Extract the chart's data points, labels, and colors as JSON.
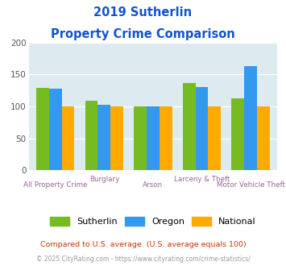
{
  "title_line1": "2019 Sutherlin",
  "title_line2": "Property Crime Comparison",
  "categories": [
    "All Property Crime",
    "Burglary",
    "Arson",
    "Larceny & Theft",
    "Motor Vehicle Theft"
  ],
  "x_labels_upper": [
    "",
    "Burglary",
    "",
    "Larceny & Theft",
    ""
  ],
  "x_labels_lower": [
    "All Property Crime",
    "",
    "Arson",
    "",
    "Motor Vehicle Theft"
  ],
  "sutherlin": [
    129,
    109,
    100,
    137,
    112
  ],
  "oregon": [
    128,
    103,
    100,
    130,
    163
  ],
  "national": [
    100,
    100,
    100,
    100,
    100
  ],
  "sutherlin_color": "#77bb22",
  "oregon_color": "#3399ee",
  "national_color": "#ffaa00",
  "ylim": [
    0,
    200
  ],
  "yticks": [
    0,
    50,
    100,
    150,
    200
  ],
  "plot_bg_color": "#ddeaf0",
  "fig_bg_color": "#ffffff",
  "title_color": "#1155cc",
  "xlabel_upper_color": "#996699",
  "xlabel_lower_color": "#996699",
  "legend_labels": [
    "Sutherlin",
    "Oregon",
    "National"
  ],
  "footnote1": "Compared to U.S. average. (U.S. average equals 100)",
  "footnote2": "© 2025 CityRating.com - https://www.cityrating.com/crime-statistics/",
  "footnote1_color": "#cc3300",
  "footnote2_color": "#999999",
  "footnote2_link_color": "#3366cc"
}
